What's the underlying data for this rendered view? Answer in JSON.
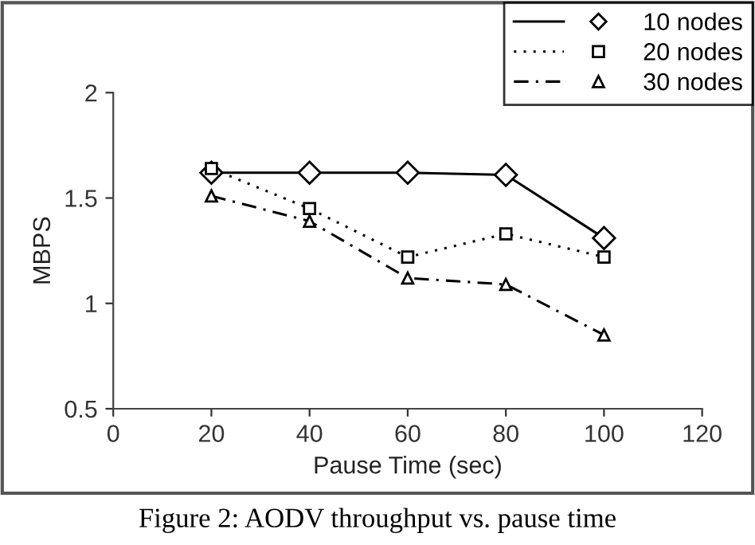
{
  "chart_data": {
    "type": "line",
    "xlabel": "Pause Time (sec)",
    "ylabel": "MBPS",
    "x": [
      20,
      40,
      60,
      80,
      100
    ],
    "series": [
      {
        "name": "10 nodes",
        "color": "#000000",
        "values": [
          1.62,
          1.62,
          1.62,
          1.61,
          1.31
        ],
        "marker": "diamond",
        "line_style": "solid"
      },
      {
        "name": "20 nodes",
        "color": "#000000",
        "values": [
          1.64,
          1.45,
          1.22,
          1.33,
          1.22
        ],
        "marker": "square",
        "line_style": "dotted"
      },
      {
        "name": "30 nodes",
        "color": "#000000",
        "values": [
          1.51,
          1.39,
          1.12,
          1.09,
          0.85
        ],
        "marker": "triangle",
        "line_style": "dashdot"
      }
    ],
    "xlim": [
      0,
      120
    ],
    "xticks": [
      0,
      20,
      40,
      60,
      80,
      100,
      120
    ],
    "ylim": [
      0.5,
      2
    ],
    "yticks": [
      0.5,
      1,
      1.5,
      2
    ],
    "grid": false,
    "legend": "top right",
    "annotations": [
      "Figure 2: AODV throughput vs. pause time"
    ]
  }
}
